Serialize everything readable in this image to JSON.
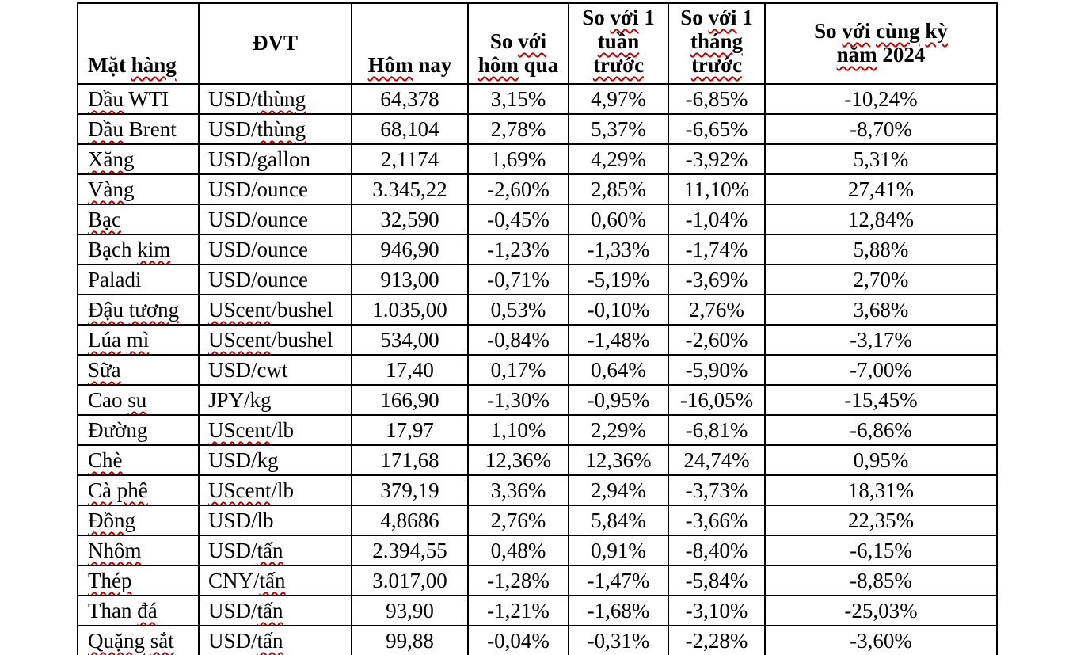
{
  "colors": {
    "page_background": "#ffffff",
    "text_black": "#000000",
    "border_black": "#000000",
    "squiggle_red": "#c00000"
  },
  "table": {
    "columns": [
      {
        "id": "name",
        "label_parts": [
          [
            "Mặt ",
            0
          ],
          [
            "hàng",
            1
          ]
        ]
      },
      {
        "id": "unit",
        "label_parts": [
          [
            "ĐVT",
            0
          ]
        ]
      },
      {
        "id": "today",
        "label_parts": [
          [
            "Hôm",
            1
          ],
          [
            " nay",
            0
          ]
        ]
      },
      {
        "id": "vs-yesterday",
        "label_parts": [
          [
            "So ",
            0
          ],
          [
            "với",
            1
          ],
          [
            "\n",
            0
          ],
          [
            "hôm",
            1
          ],
          [
            " qua",
            0
          ]
        ]
      },
      {
        "id": "vs-week",
        "label_parts": [
          [
            "So ",
            0
          ],
          [
            "với",
            1
          ],
          [
            " 1\n",
            0
          ],
          [
            "tuần",
            1
          ],
          [
            "\n",
            0
          ],
          [
            "trước",
            1
          ]
        ]
      },
      {
        "id": "vs-month",
        "label_parts": [
          [
            "So ",
            0
          ],
          [
            "với",
            1
          ],
          [
            " 1\n",
            0
          ],
          [
            "tháng",
            1
          ],
          [
            "\n",
            0
          ],
          [
            "trước",
            1
          ]
        ]
      },
      {
        "id": "vs-year",
        "label_parts": [
          [
            "So ",
            0
          ],
          [
            "với",
            1
          ],
          [
            " ",
            0
          ],
          [
            "cùng",
            1
          ],
          [
            " ",
            0
          ],
          [
            "kỳ",
            1
          ],
          [
            "\n",
            0
          ],
          [
            "năm",
            1
          ],
          [
            " 2024",
            0
          ]
        ]
      }
    ],
    "rows": [
      {
        "name_parts": [
          [
            "Dầu",
            1
          ],
          [
            " WTI",
            0
          ]
        ],
        "unit_parts": [
          [
            "USD/",
            0
          ],
          [
            "thùng",
            1
          ]
        ],
        "values": [
          "64,378",
          "3,15%",
          "4,97%",
          "-6,85%",
          "-10,24%"
        ]
      },
      {
        "name_parts": [
          [
            "Dầu",
            1
          ],
          [
            " Brent",
            0
          ]
        ],
        "unit_parts": [
          [
            "USD/",
            0
          ],
          [
            "thùng",
            1
          ]
        ],
        "values": [
          "68,104",
          "2,78%",
          "5,37%",
          "-6,65%",
          "-8,70%"
        ]
      },
      {
        "name_parts": [
          [
            "Xăng",
            1
          ]
        ],
        "unit_parts": [
          [
            "USD/gallon",
            0
          ]
        ],
        "values": [
          "2,1174",
          "1,69%",
          "4,29%",
          "-3,92%",
          "5,31%"
        ]
      },
      {
        "name_parts": [
          [
            "Vàng",
            1
          ]
        ],
        "unit_parts": [
          [
            "USD/ounce",
            0
          ]
        ],
        "values": [
          "3.345,22",
          "-2,60%",
          "2,85%",
          "11,10%",
          "27,41%"
        ]
      },
      {
        "name_parts": [
          [
            "Bạc",
            1
          ]
        ],
        "unit_parts": [
          [
            "USD/ounce",
            0
          ]
        ],
        "values": [
          "32,590",
          "-0,45%",
          "0,60%",
          "-1,04%",
          "12,84%"
        ]
      },
      {
        "name_parts": [
          [
            "Bạch ",
            0
          ],
          [
            "kim",
            1
          ]
        ],
        "unit_parts": [
          [
            "USD/ounce",
            0
          ]
        ],
        "values": [
          "946,90",
          "-1,23%",
          "-1,33%",
          "-1,74%",
          "5,88%"
        ]
      },
      {
        "name_parts": [
          [
            "Paladi",
            0
          ]
        ],
        "unit_parts": [
          [
            "USD/ounce",
            0
          ]
        ],
        "values": [
          "913,00",
          "-0,71%",
          "-5,19%",
          "-3,69%",
          "2,70%"
        ]
      },
      {
        "name_parts": [
          [
            "Đậu",
            1
          ],
          [
            " ",
            0
          ],
          [
            "tương",
            1
          ]
        ],
        "unit_parts": [
          [
            "UScent",
            1
          ],
          [
            "/bushel",
            0
          ]
        ],
        "values": [
          "1.035,00",
          "0,53%",
          "-0,10%",
          "2,76%",
          "3,68%"
        ]
      },
      {
        "name_parts": [
          [
            "Lúa",
            1
          ],
          [
            " ",
            0
          ],
          [
            "mì",
            1
          ]
        ],
        "unit_parts": [
          [
            "UScent",
            1
          ],
          [
            "/bushel",
            0
          ]
        ],
        "values": [
          "534,00",
          "-0,84%",
          "-1,48%",
          "-2,60%",
          "-3,17%"
        ]
      },
      {
        "name_parts": [
          [
            "Sữa",
            1
          ]
        ],
        "unit_parts": [
          [
            "USD/cwt",
            0
          ]
        ],
        "values": [
          "17,40",
          "0,17%",
          "0,64%",
          "-5,90%",
          "-7,00%"
        ]
      },
      {
        "name_parts": [
          [
            "Cao ",
            0
          ],
          [
            "su",
            1
          ]
        ],
        "unit_parts": [
          [
            "JPY/kg",
            0
          ]
        ],
        "values": [
          "166,90",
          "-1,30%",
          "-0,95%",
          "-16,05%",
          "-15,45%"
        ]
      },
      {
        "name_parts": [
          [
            "Đường",
            0
          ]
        ],
        "unit_parts": [
          [
            "UScent",
            1
          ],
          [
            "/lb",
            0
          ]
        ],
        "values": [
          "17,97",
          "1,10%",
          "2,29%",
          "-6,81%",
          "-6,86%"
        ]
      },
      {
        "name_parts": [
          [
            "Chè",
            1
          ]
        ],
        "unit_parts": [
          [
            "USD/kg",
            0
          ]
        ],
        "values": [
          "171,68",
          "12,36%",
          "12,36%",
          "24,74%",
          "0,95%"
        ]
      },
      {
        "name_parts": [
          [
            "Cà",
            1
          ],
          [
            " ",
            0
          ],
          [
            "phê",
            1
          ]
        ],
        "unit_parts": [
          [
            "UScent",
            1
          ],
          [
            "/lb",
            0
          ]
        ],
        "values": [
          "379,19",
          "3,36%",
          "2,94%",
          "-3,73%",
          "18,31%"
        ]
      },
      {
        "name_parts": [
          [
            "Đồng",
            1
          ]
        ],
        "unit_parts": [
          [
            "USD/lb",
            0
          ]
        ],
        "values": [
          "4,8686",
          "2,76%",
          "5,84%",
          "-3,66%",
          "22,35%"
        ]
      },
      {
        "name_parts": [
          [
            "Nhôm",
            1
          ]
        ],
        "unit_parts": [
          [
            "USD/",
            0
          ],
          [
            "tấn",
            1
          ]
        ],
        "values": [
          "2.394,55",
          "0,48%",
          "0,91%",
          "-8,40%",
          "-6,15%"
        ]
      },
      {
        "name_parts": [
          [
            "Thép",
            1
          ]
        ],
        "unit_parts": [
          [
            "CNY/",
            0
          ],
          [
            "tấn",
            1
          ]
        ],
        "values": [
          "3.017,00",
          "-1,28%",
          "-1,47%",
          "-5,84%",
          "-8,85%"
        ]
      },
      {
        "name_parts": [
          [
            "Than ",
            0
          ],
          [
            "đá",
            1
          ]
        ],
        "unit_parts": [
          [
            "USD/",
            0
          ],
          [
            "tấn",
            1
          ]
        ],
        "values": [
          "93,90",
          "-1,21%",
          "-1,68%",
          "-3,10%",
          "-25,03%"
        ]
      },
      {
        "name_parts": [
          [
            "Quặng",
            1
          ],
          [
            " ",
            0
          ],
          [
            "sắt",
            1
          ]
        ],
        "unit_parts": [
          [
            "USD/",
            0
          ],
          [
            "tấn",
            1
          ]
        ],
        "values": [
          "99,88",
          "-0,04%",
          "-0,31%",
          "-2,28%",
          "-3,60%"
        ]
      }
    ]
  }
}
